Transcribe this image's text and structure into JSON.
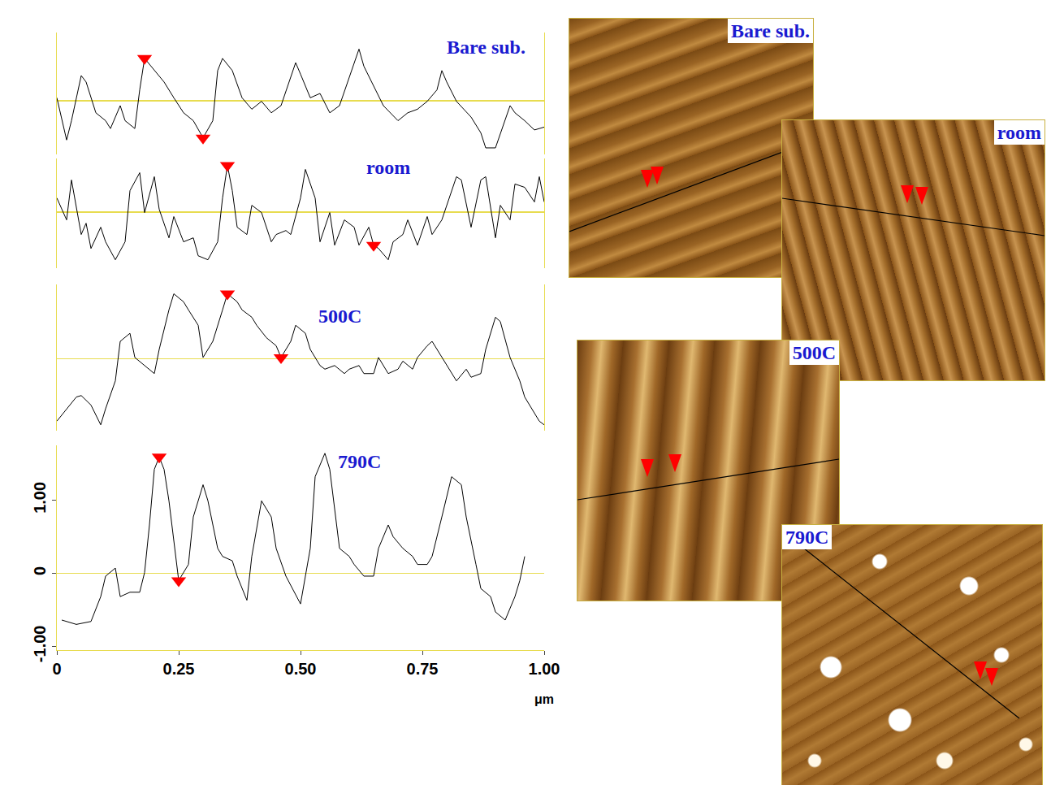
{
  "chart_data": [
    {
      "type": "line",
      "title": "Bare sub.",
      "tick_labels": false,
      "xlim": [
        0,
        1
      ],
      "ylim": [
        -0.75,
        0.95
      ],
      "series": [
        {
          "color": "#000000",
          "x": [
            0,
            0.02,
            0.03,
            0.05,
            0.06,
            0.08,
            0.1,
            0.11,
            0.13,
            0.14,
            0.16,
            0.17,
            0.18,
            0.2,
            0.22,
            0.24,
            0.26,
            0.28,
            0.3,
            0.32,
            0.33,
            0.34,
            0.36,
            0.38,
            0.4,
            0.42,
            0.44,
            0.46,
            0.49,
            0.5,
            0.52,
            0.54,
            0.56,
            0.58,
            0.6,
            0.62,
            0.63,
            0.65,
            0.67,
            0.7,
            0.72,
            0.74,
            0.76,
            0.78,
            0.79,
            0.8,
            0.82,
            0.85,
            0.87,
            0.88,
            0.9,
            0.93,
            0.94,
            0.96,
            0.98,
            1.0
          ],
          "values": [
            0.04,
            -0.55,
            -0.28,
            0.35,
            0.26,
            -0.17,
            -0.28,
            -0.39,
            -0.07,
            -0.28,
            -0.39,
            0.15,
            0.59,
            0.42,
            0.26,
            0.04,
            -0.17,
            -0.28,
            -0.52,
            -0.28,
            0.42,
            0.59,
            0.42,
            0.04,
            -0.12,
            -0.01,
            -0.17,
            -0.07,
            0.53,
            0.37,
            0.04,
            0.1,
            -0.17,
            -0.07,
            0.32,
            0.72,
            0.48,
            0.21,
            -0.07,
            -0.28,
            -0.17,
            -0.12,
            -0.01,
            0.15,
            0.42,
            0.26,
            -0.01,
            -0.23,
            -0.45,
            -0.66,
            -0.66,
            -0.07,
            -0.17,
            -0.28,
            -0.41,
            -0.37
          ]
        },
        {
          "type": "scatter",
          "marker": "triangle-down",
          "color": "#ff0000",
          "x": [
            0.18,
            0.3
          ],
          "values": [
            0.59,
            -0.52
          ]
        }
      ]
    },
    {
      "type": "line",
      "title": "room",
      "tick_labels": false,
      "xlim": [
        0,
        1
      ],
      "ylim": [
        -0.85,
        0.8
      ],
      "series": [
        {
          "color": "#000000",
          "x": [
            0,
            0.02,
            0.03,
            0.05,
            0.06,
            0.07,
            0.09,
            0.1,
            0.12,
            0.14,
            0.15,
            0.17,
            0.18,
            0.2,
            0.21,
            0.23,
            0.24,
            0.26,
            0.28,
            0.29,
            0.31,
            0.33,
            0.34,
            0.35,
            0.36,
            0.37,
            0.39,
            0.4,
            0.42,
            0.44,
            0.45,
            0.47,
            0.48,
            0.5,
            0.51,
            0.53,
            0.54,
            0.56,
            0.57,
            0.59,
            0.61,
            0.62,
            0.64,
            0.65,
            0.66,
            0.68,
            0.69,
            0.71,
            0.72,
            0.74,
            0.76,
            0.77,
            0.79,
            0.8,
            0.82,
            0.83,
            0.85,
            0.87,
            0.88,
            0.9,
            0.91,
            0.93,
            0.94,
            0.96,
            0.98,
            0.99,
            1.0
          ],
          "values": [
            0.21,
            -0.12,
            0.48,
            -0.34,
            -0.17,
            -0.55,
            -0.23,
            -0.45,
            -0.72,
            -0.45,
            0.32,
            0.59,
            -0.01,
            0.53,
            0.04,
            -0.39,
            -0.07,
            -0.45,
            -0.39,
            -0.66,
            -0.72,
            -0.45,
            0.21,
            0.7,
            0.32,
            -0.23,
            -0.34,
            0.1,
            -0.01,
            -0.45,
            -0.34,
            -0.28,
            -0.34,
            0.21,
            0.64,
            0.21,
            -0.45,
            -0.01,
            -0.5,
            -0.12,
            -0.23,
            -0.5,
            -0.23,
            -0.5,
            -0.55,
            -0.72,
            -0.45,
            -0.34,
            -0.12,
            -0.5,
            -0.07,
            -0.34,
            -0.12,
            0.1,
            0.53,
            0.48,
            -0.23,
            0.48,
            0.53,
            -0.39,
            0.1,
            -0.12,
            0.42,
            0.37,
            0.15,
            0.53,
            0.15
          ]
        },
        {
          "type": "scatter",
          "marker": "triangle-down",
          "color": "#ff0000",
          "x": [
            0.35,
            0.65
          ],
          "values": [
            0.7,
            -0.5
          ]
        }
      ]
    },
    {
      "type": "line",
      "title": "500C",
      "tick_labels": false,
      "xlim": [
        0,
        1
      ],
      "ylim": [
        -0.98,
        1.02
      ],
      "series": [
        {
          "color": "#000000",
          "x": [
            0,
            0.02,
            0.04,
            0.05,
            0.07,
            0.09,
            0.1,
            0.12,
            0.13,
            0.15,
            0.16,
            0.18,
            0.2,
            0.21,
            0.23,
            0.24,
            0.26,
            0.27,
            0.29,
            0.3,
            0.32,
            0.34,
            0.35,
            0.37,
            0.38,
            0.4,
            0.41,
            0.43,
            0.45,
            0.46,
            0.48,
            0.49,
            0.51,
            0.52,
            0.54,
            0.55,
            0.57,
            0.59,
            0.6,
            0.62,
            0.63,
            0.65,
            0.66,
            0.68,
            0.7,
            0.71,
            0.73,
            0.74,
            0.76,
            0.77,
            0.79,
            0.8,
            0.82,
            0.84,
            0.85,
            0.87,
            0.88,
            0.9,
            0.91,
            0.93,
            0.95,
            0.96,
            0.98,
            0.99,
            1.0
          ],
          "values": [
            -0.85,
            -0.68,
            -0.52,
            -0.5,
            -0.63,
            -0.9,
            -0.68,
            -0.3,
            0.24,
            0.35,
            0.02,
            -0.09,
            -0.2,
            0.13,
            0.67,
            0.89,
            0.78,
            0.67,
            0.46,
            0.02,
            0.24,
            0.67,
            0.89,
            0.78,
            0.67,
            0.57,
            0.46,
            0.29,
            0.18,
            0.02,
            0.24,
            0.46,
            0.35,
            0.13,
            -0.09,
            -0.14,
            -0.09,
            -0.2,
            -0.14,
            -0.09,
            -0.2,
            -0.2,
            0.02,
            -0.2,
            -0.14,
            -0.03,
            -0.14,
            0.02,
            0.18,
            0.24,
            0.02,
            -0.09,
            -0.3,
            -0.14,
            -0.25,
            -0.2,
            0.13,
            0.57,
            0.51,
            0.02,
            -0.3,
            -0.52,
            -0.74,
            -0.85,
            -0.9
          ]
        },
        {
          "type": "scatter",
          "marker": "triangle-down",
          "color": "#ff0000",
          "x": [
            0.35,
            0.46
          ],
          "values": [
            0.89,
            0.02
          ]
        }
      ]
    },
    {
      "type": "line",
      "title": "790C",
      "x_label": "μm",
      "xlim": [
        0,
        1
      ],
      "ylim": [
        -1.05,
        1.75
      ],
      "xticks": [
        0,
        0.25,
        {
          "value": 0.5,
          "label": "0.50"
        },
        0.75,
        {
          "value": 1,
          "label": "1.00"
        }
      ],
      "yticks": [
        {
          "value": -1,
          "label": "-1.00"
        },
        0,
        {
          "value": 1,
          "label": "1.00"
        }
      ],
      "series": [
        {
          "color": "#000000",
          "x": [
            0.01,
            0.04,
            0.07,
            0.09,
            0.1,
            0.12,
            0.13,
            0.15,
            0.17,
            0.18,
            0.19,
            0.2,
            0.21,
            0.22,
            0.23,
            0.24,
            0.25,
            0.27,
            0.28,
            0.3,
            0.31,
            0.33,
            0.34,
            0.36,
            0.37,
            0.39,
            0.4,
            0.42,
            0.44,
            0.45,
            0.47,
            0.5,
            0.52,
            0.53,
            0.55,
            0.56,
            0.58,
            0.6,
            0.61,
            0.63,
            0.65,
            0.66,
            0.68,
            0.69,
            0.71,
            0.73,
            0.74,
            0.76,
            0.77,
            0.79,
            0.81,
            0.83,
            0.84,
            0.86,
            0.87,
            0.89,
            0.9,
            0.92,
            0.94,
            0.95,
            0.96
          ],
          "values": [
            -0.64,
            -0.7,
            -0.66,
            -0.32,
            -0.04,
            0.07,
            -0.32,
            -0.26,
            -0.26,
            0.01,
            0.66,
            1.42,
            1.59,
            1.42,
            0.99,
            0.45,
            -0.1,
            0.12,
            0.77,
            1.21,
            0.99,
            0.34,
            0.23,
            0.17,
            -0.04,
            -0.37,
            0.23,
            0.99,
            0.77,
            0.34,
            -0.04,
            -0.42,
            0.34,
            1.32,
            1.64,
            1.42,
            0.34,
            0.23,
            0.12,
            -0.04,
            -0.04,
            0.34,
            0.66,
            0.5,
            0.34,
            0.23,
            0.12,
            0.12,
            0.23,
            0.77,
            1.32,
            1.21,
            0.77,
            0.12,
            -0.21,
            -0.32,
            -0.53,
            -0.64,
            -0.32,
            -0.1,
            0.23
          ]
        },
        {
          "type": "scatter",
          "marker": "triangle-down",
          "color": "#ff0000",
          "x": [
            0.21,
            0.25
          ],
          "values": [
            1.59,
            -0.1
          ]
        }
      ]
    }
  ],
  "images": [
    {
      "label": "Bare sub."
    },
    {
      "label": "room"
    },
    {
      "label": "500C"
    },
    {
      "label": "790C"
    }
  ]
}
